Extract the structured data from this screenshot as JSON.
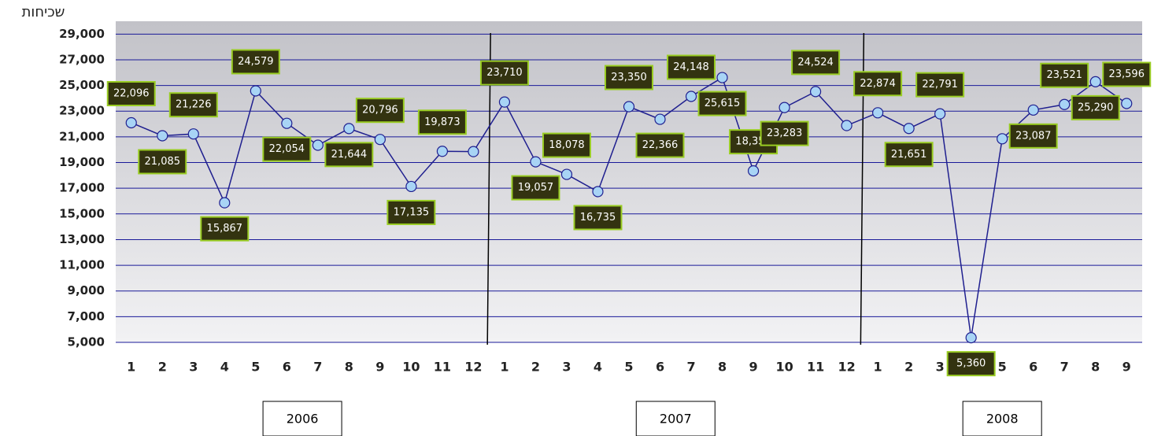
{
  "chart_data": {
    "type": "line",
    "y_label": "שכיחות",
    "categories": [
      "1",
      "2",
      "3",
      "4",
      "5",
      "6",
      "7",
      "8",
      "9",
      "10",
      "11",
      "12",
      "1",
      "2",
      "3",
      "4",
      "5",
      "6",
      "7",
      "8",
      "9",
      "10",
      "11",
      "12",
      "1",
      "2",
      "3",
      "4",
      "5",
      "6",
      "7",
      "8",
      "9"
    ],
    "groups": [
      {
        "label": "2006",
        "count": 12
      },
      {
        "label": "2007",
        "count": 12
      },
      {
        "label": "2008",
        "count": 9
      }
    ],
    "series": [
      {
        "name": "שכיחות",
        "color": "#1f1f8f",
        "values": [
          22096,
          21085,
          21226,
          15867,
          24579,
          22054,
          20350,
          21644,
          20796,
          17135,
          19873,
          19850,
          23710,
          19057,
          18078,
          16735,
          23350,
          22366,
          24148,
          25615,
          18350,
          23283,
          24524,
          21880,
          22874,
          21651,
          22791,
          5360,
          20850,
          23087,
          23521,
          25290,
          23596
        ],
        "value_labels": [
          "22,096",
          "21,085",
          "21,226",
          "15,867",
          "24,579",
          "22,054",
          null,
          "21,644",
          "20,796",
          "17,135",
          "19,873",
          null,
          "23,710",
          "19,057",
          "18,078",
          "16,735",
          "23,350",
          "22,366",
          "24,148",
          "25,615",
          "18,350",
          "23,283",
          "24,524",
          null,
          "22,874",
          "21,651",
          "22,791",
          "5,360",
          null,
          "23,087",
          "23,521",
          "25,290",
          "23,596"
        ]
      }
    ],
    "ylim": [
      5000,
      30000
    ],
    "yticks": [
      {
        "value": 5000,
        "label": "5,000"
      },
      {
        "value": 7000,
        "label": "7,000"
      },
      {
        "value": 9000,
        "label": "9,000"
      },
      {
        "value": 11000,
        "label": "11,000"
      },
      {
        "value": 13000,
        "label": "13,000"
      },
      {
        "value": 15000,
        "label": "15,000"
      },
      {
        "value": 17000,
        "label": "17,000"
      },
      {
        "value": 19000,
        "label": "19,000"
      },
      {
        "value": 21000,
        "label": "21,000"
      },
      {
        "value": 23000,
        "label": "23,000"
      },
      {
        "value": 25000,
        "label": "25,000"
      },
      {
        "value": 27000,
        "label": "27,000"
      },
      {
        "value": 29000,
        "label": "29,000"
      }
    ],
    "grid": true
  }
}
